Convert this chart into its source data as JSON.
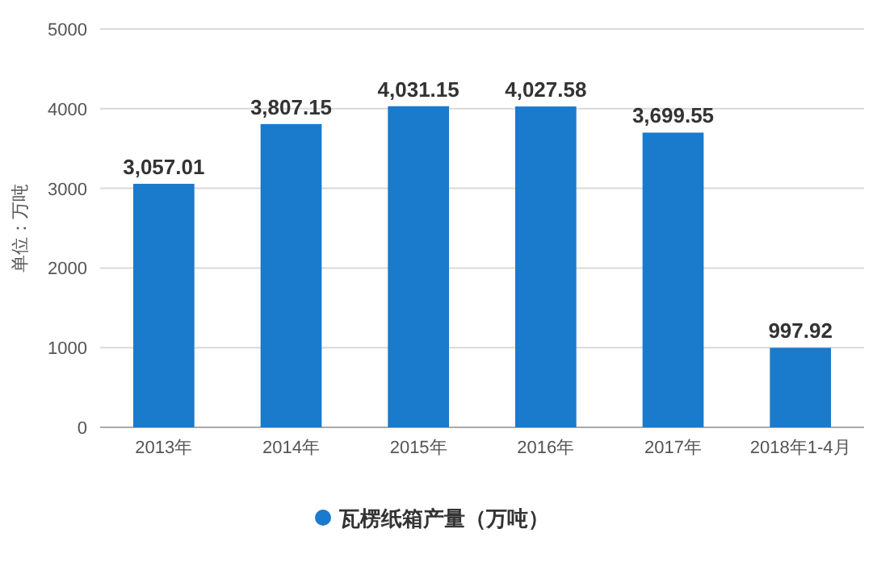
{
  "chart_data": {
    "type": "bar",
    "ylabel": "单位：万吨",
    "categories": [
      "2013年",
      "2014年",
      "2015年",
      "2016年",
      "2017年",
      "2018年1-4月"
    ],
    "series": [
      {
        "name": "瓦楞纸箱产量（万吨）",
        "color": "#1a7acb",
        "values": [
          3057.01,
          3807.15,
          4031.15,
          4027.58,
          3699.55,
          997.92
        ],
        "value_labels": [
          "3,057.01",
          "3,807.15",
          "4,031.15",
          "4,027.58",
          "3,699.55",
          "997.92"
        ]
      }
    ],
    "ylim": [
      0,
      5000
    ],
    "yticks": [
      0,
      1000,
      2000,
      3000,
      4000,
      5000
    ],
    "grid": "y",
    "legend": "bottom",
    "marker": "circle"
  }
}
